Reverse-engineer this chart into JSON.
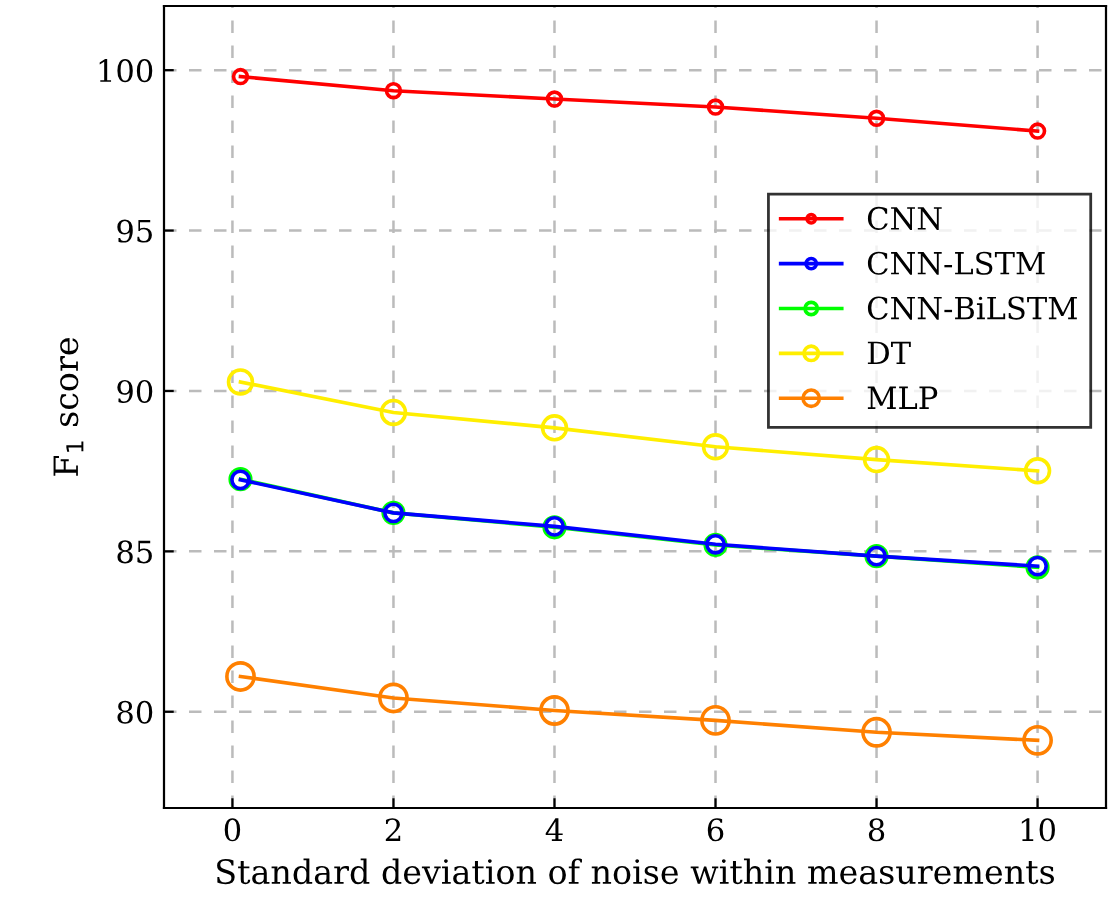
{
  "chart_data": {
    "type": "line",
    "xlabel": "Standard deviation of noise within measurements",
    "ylabel": "F$_{1}$ score",
    "x": [
      0.1,
      2,
      4,
      6,
      8,
      10
    ],
    "series": [
      {
        "name": "CNN",
        "color": "#ff0000",
        "values": [
          99.8,
          99.36,
          99.1,
          98.85,
          98.5,
          98.1
        ]
      },
      {
        "name": "CNN-LSTM",
        "color": "#0000ff",
        "values": [
          87.23,
          86.2,
          85.78,
          85.22,
          84.85,
          84.54
        ]
      },
      {
        "name": "CNN-BiLSTM",
        "color": "#00ff00",
        "values": [
          87.25,
          86.2,
          85.75,
          85.2,
          84.85,
          84.5
        ]
      },
      {
        "name": "DT",
        "color": "#ffee00",
        "values": [
          90.28,
          89.33,
          88.85,
          88.26,
          87.86,
          87.51
        ]
      },
      {
        "name": "MLP",
        "color": "#ff8000",
        "values": [
          81.1,
          80.43,
          80.04,
          79.73,
          79.36,
          79.11
        ]
      }
    ],
    "xlim": [
      -0.85,
      10.85
    ],
    "ylim": [
      77,
      102
    ],
    "xticks": [
      0,
      2,
      4,
      6,
      8,
      10
    ],
    "yticks": [
      80,
      85,
      90,
      95,
      100
    ],
    "grid": true,
    "legend": "right",
    "marker": "circle",
    "line_style": "solid"
  }
}
